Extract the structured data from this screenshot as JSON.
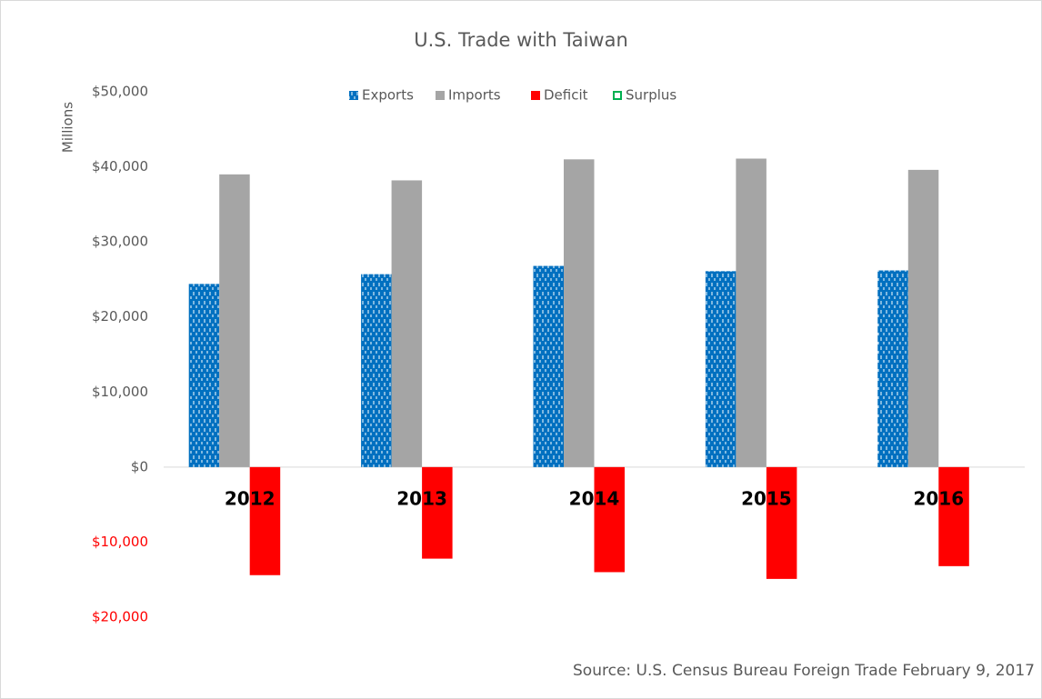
{
  "chart_data": {
    "type": "bar",
    "title": "U.S. Trade with Taiwan",
    "y_label": "Millions",
    "source": "Source: U.S. Census Bureau Foreign Trade February 9, 2017",
    "categories": [
      "2012",
      "2013",
      "2014",
      "2015",
      "2016"
    ],
    "series": [
      {
        "name": "Exports",
        "color": "#0070c0",
        "pattern": "dashes",
        "values": [
          24400,
          25700,
          26800,
          26100,
          26200
        ]
      },
      {
        "name": "Imports",
        "color": "#a5a5a5",
        "values": [
          39000,
          38200,
          41000,
          41100,
          39600
        ]
      },
      {
        "name": "Deficit",
        "color": "#ff0000",
        "values": [
          -14400,
          -12200,
          -14000,
          -14900,
          -13200
        ]
      },
      {
        "name": "Surplus",
        "color": "#00b050",
        "legend_style": "outline",
        "values": [
          null,
          null,
          null,
          null,
          null
        ]
      }
    ],
    "ylim": [
      -20000,
      50000
    ],
    "yticks": [
      {
        "value": -20000,
        "label": "$20,000"
      },
      {
        "value": -10000,
        "label": "$10,000"
      },
      {
        "value": 0,
        "label": "$0"
      },
      {
        "value": 10000,
        "label": "$10,000"
      },
      {
        "value": 20000,
        "label": "$20,000"
      },
      {
        "value": 30000,
        "label": "$30,000"
      },
      {
        "value": 40000,
        "label": "$40,000"
      },
      {
        "value": 50000,
        "label": "$50,000"
      }
    ],
    "negative_tick_color": "#ff0000",
    "grid": false,
    "legend": "top"
  }
}
